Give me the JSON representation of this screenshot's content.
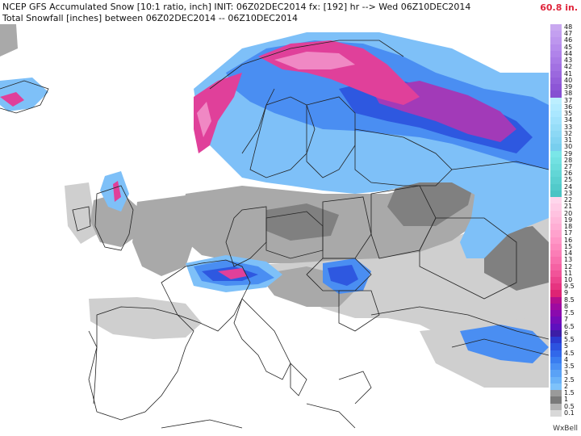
{
  "header": {
    "title": "NCEP GFS Accumulated Snow [10:1 ratio, inch] INIT: 06Z02DEC2014 fx: [192] hr --> Wed 06Z10DEC2014",
    "subtitle": "Total Snowfall [inches] between 06Z02DEC2014 -- 06Z10DEC2014",
    "max_value": "60.8 in."
  },
  "legend": {
    "items": [
      {
        "label": "48",
        "color": "#c9a8f0"
      },
      {
        "label": "47",
        "color": "#c39ff0"
      },
      {
        "label": "46",
        "color": "#bd96ee"
      },
      {
        "label": "45",
        "color": "#b68cec"
      },
      {
        "label": "44",
        "color": "#b083ea"
      },
      {
        "label": "43",
        "color": "#a97ae6"
      },
      {
        "label": "42",
        "color": "#a271e2"
      },
      {
        "label": "41",
        "color": "#9b68de"
      },
      {
        "label": "40",
        "color": "#945fda"
      },
      {
        "label": "39",
        "color": "#8d56d6"
      },
      {
        "label": "38",
        "color": "#8650d2"
      },
      {
        "label": "37",
        "color": "#bcefff"
      },
      {
        "label": "36",
        "color": "#b3ebff"
      },
      {
        "label": "35",
        "color": "#aae7ff"
      },
      {
        "label": "34",
        "color": "#a0e2fc"
      },
      {
        "label": "33",
        "color": "#96ddf8"
      },
      {
        "label": "32",
        "color": "#8cd8f5"
      },
      {
        "label": "31",
        "color": "#82d3f2"
      },
      {
        "label": "30",
        "color": "#78ceee"
      },
      {
        "label": "29",
        "color": "#7ae6e8"
      },
      {
        "label": "28",
        "color": "#72e1e2"
      },
      {
        "label": "27",
        "color": "#6adcdc"
      },
      {
        "label": "26",
        "color": "#62d6d6"
      },
      {
        "label": "25",
        "color": "#5ad0d0"
      },
      {
        "label": "24",
        "color": "#52caca"
      },
      {
        "label": "23",
        "color": "#4ac4c4"
      },
      {
        "label": "22",
        "color": "#ffd6ec"
      },
      {
        "label": "21",
        "color": "#ffcce6"
      },
      {
        "label": "20",
        "color": "#ffc2e0"
      },
      {
        "label": "19",
        "color": "#ffb8da"
      },
      {
        "label": "18",
        "color": "#ffaed4"
      },
      {
        "label": "17",
        "color": "#ffa2cd"
      },
      {
        "label": "16",
        "color": "#ff96c6"
      },
      {
        "label": "15",
        "color": "#fd8abe"
      },
      {
        "label": "14",
        "color": "#fb7db6"
      },
      {
        "label": "13",
        "color": "#f870ad"
      },
      {
        "label": "12",
        "color": "#f562a3"
      },
      {
        "label": "11",
        "color": "#f15499"
      },
      {
        "label": "10",
        "color": "#ec448d"
      },
      {
        "label": "9.5",
        "color": "#e63480"
      },
      {
        "label": "9",
        "color": "#de2474"
      },
      {
        "label": "8.5",
        "color": "#b40e8c"
      },
      {
        "label": "8",
        "color": "#9e0aa0"
      },
      {
        "label": "7.5",
        "color": "#8a0aae"
      },
      {
        "label": "7",
        "color": "#740cb8"
      },
      {
        "label": "6.5",
        "color": "#5e10be"
      },
      {
        "label": "6",
        "color": "#3c1ea6"
      },
      {
        "label": "5.5",
        "color": "#2b3ad0"
      },
      {
        "label": "5",
        "color": "#2c52e0"
      },
      {
        "label": "4.5",
        "color": "#3168ea"
      },
      {
        "label": "4",
        "color": "#3a7df0"
      },
      {
        "label": "3.5",
        "color": "#4a90f4"
      },
      {
        "label": "3",
        "color": "#5aa2f6"
      },
      {
        "label": "2.5",
        "color": "#6ab2f8"
      },
      {
        "label": "2",
        "color": "#7ec2fa"
      },
      {
        "label": "1.5",
        "color": "#9a9a9a"
      },
      {
        "label": "1",
        "color": "#7a7a7a"
      },
      {
        "label": "0.5",
        "color": "#b4b4b4"
      },
      {
        "label": "0.1",
        "color": "#d8d8d8"
      }
    ]
  },
  "branding": {
    "logo_text": "WxBell"
  },
  "map_colors": {
    "land": "#ffffff",
    "light_gray": "#cfcfcf",
    "mid_gray": "#a9a9a9",
    "dark_gray": "#808080",
    "light_blue": "#7ec0f8",
    "mid_blue": "#4a8ef2",
    "dark_blue": "#2e58e0",
    "magenta": "#e0409a",
    "pink": "#f088c4",
    "purple": "#a23ab8",
    "border": "#222222"
  }
}
